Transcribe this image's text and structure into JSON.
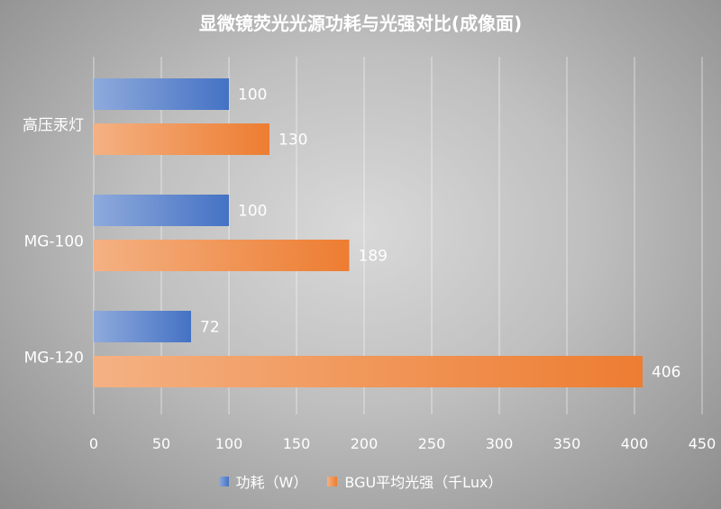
{
  "chart_data": {
    "type": "bar",
    "orientation": "horizontal",
    "title": "显微镜荧光光源功耗与光强对比(成像面)",
    "categories": [
      "高压汞灯",
      "MG-100",
      "MG-120"
    ],
    "series": [
      {
        "name": "功耗（W）",
        "values": [
          100,
          100,
          72
        ],
        "color": "#4472c4"
      },
      {
        "name": "BGU平均光强（千Lux）",
        "values": [
          130,
          189,
          406
        ],
        "color": "#ed7d31"
      }
    ],
    "xlim": [
      0,
      450
    ],
    "xticks": [
      0,
      50,
      100,
      150,
      200,
      250,
      300,
      350,
      400,
      450
    ],
    "xlabel": "",
    "ylabel": "",
    "grid": "vertical",
    "legend": "bottom",
    "data_labels": true
  }
}
